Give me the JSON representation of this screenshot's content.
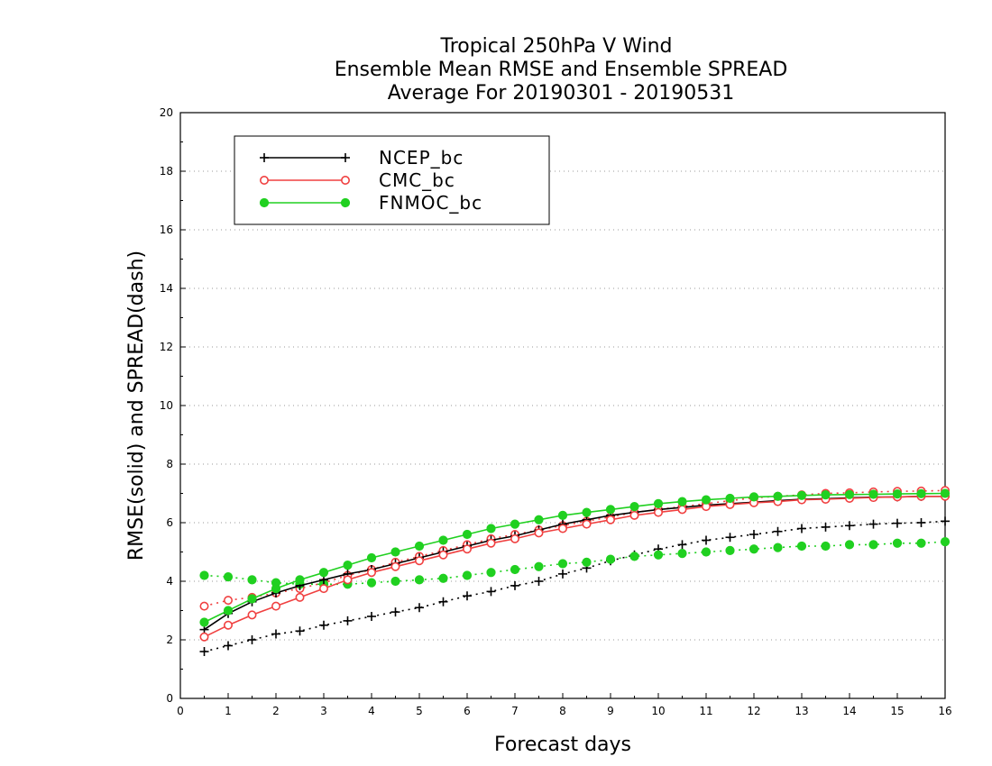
{
  "chart_data": {
    "type": "line",
    "title": [
      "Tropical 250hPa V Wind",
      "Ensemble Mean RMSE and Ensemble SPREAD",
      "Average For 20190301 - 20190531"
    ],
    "xlabel": "Forecast days",
    "ylabel": "RMSE(solid) and SPREAD(dash)",
    "xlim": [
      0,
      16
    ],
    "ylim": [
      0,
      20
    ],
    "xticks": [
      "0",
      "1",
      "2",
      "3",
      "4",
      "5",
      "6",
      "7",
      "8",
      "9",
      "10",
      "11",
      "12",
      "13",
      "14",
      "15",
      "16"
    ],
    "yticks": [
      "0",
      "2",
      "4",
      "6",
      "8",
      "10",
      "12",
      "14",
      "16",
      "18",
      "20"
    ],
    "grid": "horizontal dotted",
    "legend_position": "top-left",
    "x": [
      0.5,
      1,
      1.5,
      2,
      2.5,
      3,
      3.5,
      4,
      4.5,
      5,
      5.5,
      6,
      6.5,
      7,
      7.5,
      8,
      8.5,
      9,
      9.5,
      10,
      10.5,
      11,
      11.5,
      12,
      12.5,
      13,
      13.5,
      14,
      14.5,
      15,
      15.5,
      16
    ],
    "series": [
      {
        "name": "NCEP_bc",
        "kind": "rmse",
        "color": "#000000",
        "marker": "plus",
        "values": [
          2.35,
          2.9,
          3.3,
          3.6,
          3.85,
          4.05,
          4.25,
          4.4,
          4.6,
          4.8,
          5.0,
          5.2,
          5.4,
          5.55,
          5.75,
          5.95,
          6.1,
          6.25,
          6.35,
          6.45,
          6.52,
          6.6,
          6.65,
          6.7,
          6.75,
          6.8,
          6.82,
          6.85,
          6.87,
          6.88,
          6.9,
          6.9
        ]
      },
      {
        "name": "CMC_bc",
        "kind": "rmse",
        "color": "#f04040",
        "marker": "open-circle",
        "values": [
          2.1,
          2.5,
          2.85,
          3.15,
          3.45,
          3.75,
          4.05,
          4.3,
          4.5,
          4.7,
          4.9,
          5.1,
          5.3,
          5.45,
          5.65,
          5.8,
          5.95,
          6.1,
          6.25,
          6.35,
          6.45,
          6.55,
          6.62,
          6.68,
          6.72,
          6.78,
          6.8,
          6.83,
          6.86,
          6.88,
          6.9,
          6.9
        ]
      },
      {
        "name": "FNMOC_bc",
        "kind": "rmse",
        "color": "#20d020",
        "marker": "filled-circle",
        "values": [
          2.6,
          3.0,
          3.4,
          3.75,
          4.05,
          4.3,
          4.55,
          4.8,
          5.0,
          5.2,
          5.4,
          5.6,
          5.8,
          5.95,
          6.1,
          6.25,
          6.35,
          6.45,
          6.55,
          6.65,
          6.72,
          6.78,
          6.83,
          6.88,
          6.9,
          6.93,
          6.95,
          6.96,
          6.97,
          6.98,
          6.99,
          7.0
        ]
      },
      {
        "name": "NCEP_bc",
        "kind": "spread",
        "color": "#000000",
        "marker": "plus",
        "values": [
          1.6,
          1.8,
          2.0,
          2.2,
          2.3,
          2.5,
          2.65,
          2.8,
          2.95,
          3.1,
          3.3,
          3.5,
          3.65,
          3.85,
          4.0,
          4.25,
          4.45,
          4.7,
          4.9,
          5.1,
          5.25,
          5.4,
          5.5,
          5.6,
          5.7,
          5.8,
          5.85,
          5.9,
          5.95,
          5.98,
          6.0,
          6.05
        ]
      },
      {
        "name": "CMC_bc",
        "kind": "spread",
        "color": "#f04040",
        "marker": "open-circle",
        "values": [
          3.15,
          3.35,
          3.45,
          3.6,
          3.75,
          3.95,
          4.2,
          4.4,
          4.65,
          4.85,
          5.05,
          5.25,
          5.45,
          5.6,
          5.75,
          5.9,
          6.05,
          6.2,
          6.35,
          6.45,
          6.55,
          6.65,
          6.75,
          6.85,
          6.9,
          6.95,
          7.0,
          7.02,
          7.05,
          7.07,
          7.08,
          7.1
        ]
      },
      {
        "name": "FNMOC_bc",
        "kind": "spread",
        "color": "#20d020",
        "marker": "filled-circle",
        "values": [
          4.2,
          4.15,
          4.05,
          3.95,
          3.9,
          3.9,
          3.9,
          3.95,
          4.0,
          4.05,
          4.1,
          4.2,
          4.3,
          4.4,
          4.5,
          4.6,
          4.65,
          4.75,
          4.85,
          4.9,
          4.95,
          5.0,
          5.05,
          5.1,
          5.15,
          5.2,
          5.2,
          5.25,
          5.25,
          5.3,
          5.3,
          5.35
        ]
      }
    ],
    "legend": [
      {
        "label": "NCEP_bc",
        "color": "#000000",
        "marker": "plus"
      },
      {
        "label": "CMC_bc",
        "color": "#f04040",
        "marker": "open-circle"
      },
      {
        "label": "FNMOC_bc",
        "color": "#20d020",
        "marker": "filled-circle"
      }
    ]
  }
}
